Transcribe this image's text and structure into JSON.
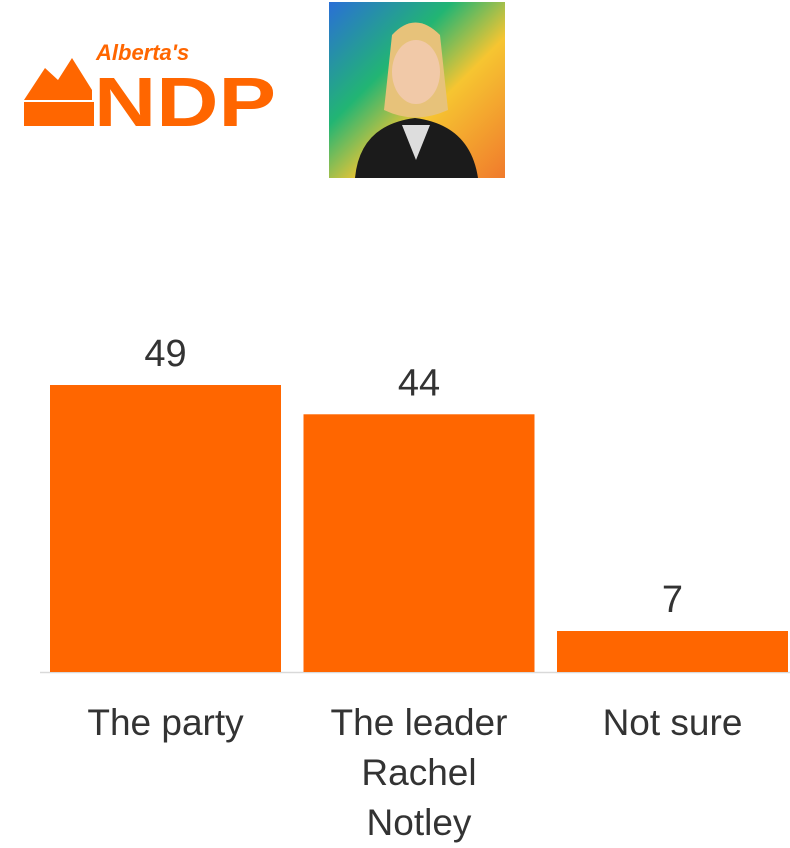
{
  "logo": {
    "line1": "Alberta's",
    "line2": "NDP"
  },
  "chart_data": {
    "type": "bar",
    "categories": [
      "The party",
      "The leader Rachel Notley",
      "Not sure"
    ],
    "values": [
      49,
      44,
      7
    ],
    "color": "#ff6600"
  }
}
